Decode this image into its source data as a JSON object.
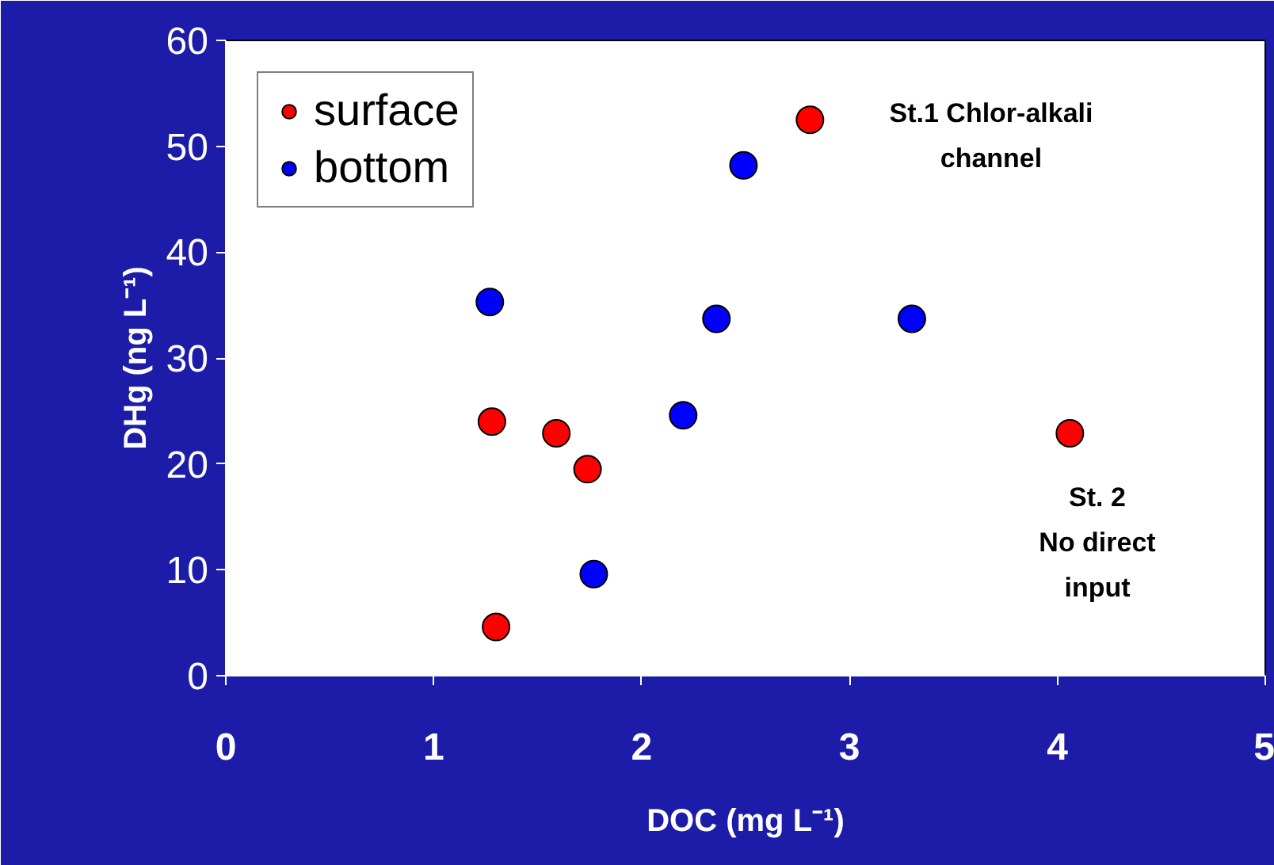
{
  "chart_data": {
    "type": "scatter",
    "xlabel": "DOC (mg L⁻¹)",
    "ylabel": "DHg (ng L⁻¹)",
    "series": [
      {
        "name": "surface",
        "color": "#ff0000",
        "x": [
          1.28,
          1.59,
          1.74,
          1.3,
          2.81,
          4.06
        ],
        "values": [
          24.0,
          22.9,
          19.5,
          4.6,
          52.5,
          22.9
        ]
      },
      {
        "name": "bottom",
        "color": "#0000ff",
        "x": [
          1.27,
          1.77,
          2.2,
          2.36,
          2.49,
          3.3
        ],
        "values": [
          35.3,
          9.6,
          24.6,
          33.7,
          48.2,
          33.7
        ]
      }
    ],
    "xlim": [
      0,
      5
    ],
    "ylim": [
      0,
      60
    ],
    "xticks": [
      0,
      1,
      2,
      3,
      4,
      5
    ],
    "yticks": [
      0,
      10,
      20,
      30,
      40,
      50,
      60
    ],
    "annotations": [
      "St.1 Chlor-alkali\nchannel",
      "St. 2\nNo direct\ninput"
    ],
    "marker": "circle",
    "legend": "top left",
    "grid": false
  }
}
